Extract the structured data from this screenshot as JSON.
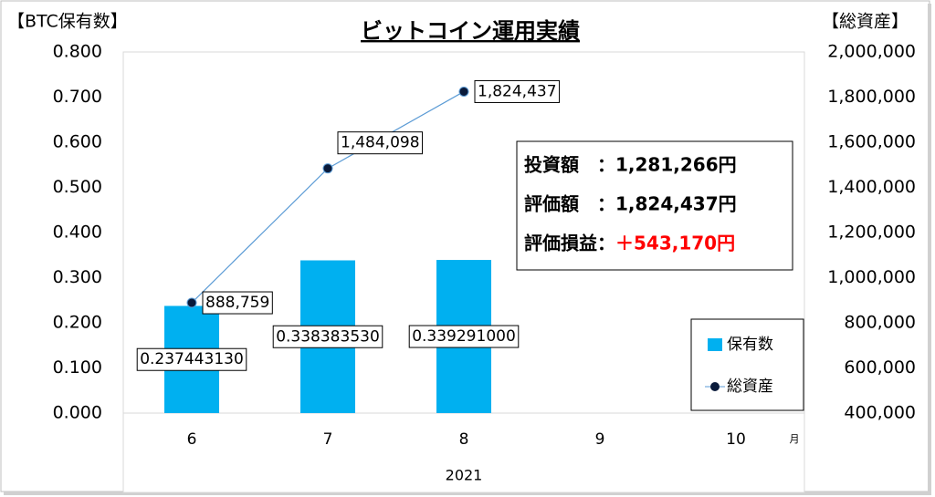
{
  "chart_data": {
    "type": "bar",
    "title": "ビットコイン運用実績",
    "y_label": "【BTC保有数】",
    "y2_label": "【総資産】",
    "x_unit": "月",
    "x_group": "2021",
    "categories": [
      "6",
      "7",
      "8",
      "9",
      "10"
    ],
    "series": [
      {
        "name": "保有数",
        "type": "bar",
        "color": "#00b0f0",
        "values": [
          0.23744313,
          0.33838353,
          0.339291,
          null,
          null
        ],
        "value_labels": [
          "0.237443130",
          "0.338383530",
          "0.339291000",
          null,
          null
        ]
      },
      {
        "name": "総資産",
        "type": "line",
        "axis": "y2",
        "color": "#5b9bd5",
        "marker_color": "#0a1a3a",
        "values": [
          888759,
          1484098,
          1824437,
          null,
          null
        ],
        "value_labels": [
          "888,759",
          "1,484,098",
          "1,824,437",
          null,
          null
        ]
      }
    ],
    "ylim": [
      0,
      0.8
    ],
    "yticks": [
      {
        "value": 0,
        "label": "0.000"
      },
      {
        "value": 0.1,
        "label": "0.100"
      },
      {
        "value": 0.2,
        "label": "0.200"
      },
      {
        "value": 0.3,
        "label": "0.300"
      },
      {
        "value": 0.4,
        "label": "0.400"
      },
      {
        "value": 0.5,
        "label": "0.500"
      },
      {
        "value": 0.6,
        "label": "0.600"
      },
      {
        "value": 0.7,
        "label": "0.700"
      },
      {
        "value": 0.8,
        "label": "0.800"
      }
    ],
    "y2lim": [
      400000,
      2000000
    ],
    "y2ticks": [
      {
        "value": 400000,
        "label": "400,000"
      },
      {
        "value": 600000,
        "label": "600,000"
      },
      {
        "value": 800000,
        "label": "800,000"
      },
      {
        "value": 1000000,
        "label": "1,000,000"
      },
      {
        "value": 1200000,
        "label": "1,200,000"
      },
      {
        "value": 1400000,
        "label": "1,400,000"
      },
      {
        "value": 1600000,
        "label": "1,600,000"
      },
      {
        "value": 1800000,
        "label": "1,800,000"
      },
      {
        "value": 2000000,
        "label": "2,000,000"
      }
    ],
    "legend": "lower right",
    "annotations": [
      {
        "label": "投資額　：",
        "value": "1,281,266円",
        "color": "#000000"
      },
      {
        "label": "評価額　：",
        "value": "1,824,437円",
        "color": "#000000"
      },
      {
        "label": "評価損益：",
        "value": "＋543,170円",
        "color": "#ff0000"
      }
    ]
  }
}
